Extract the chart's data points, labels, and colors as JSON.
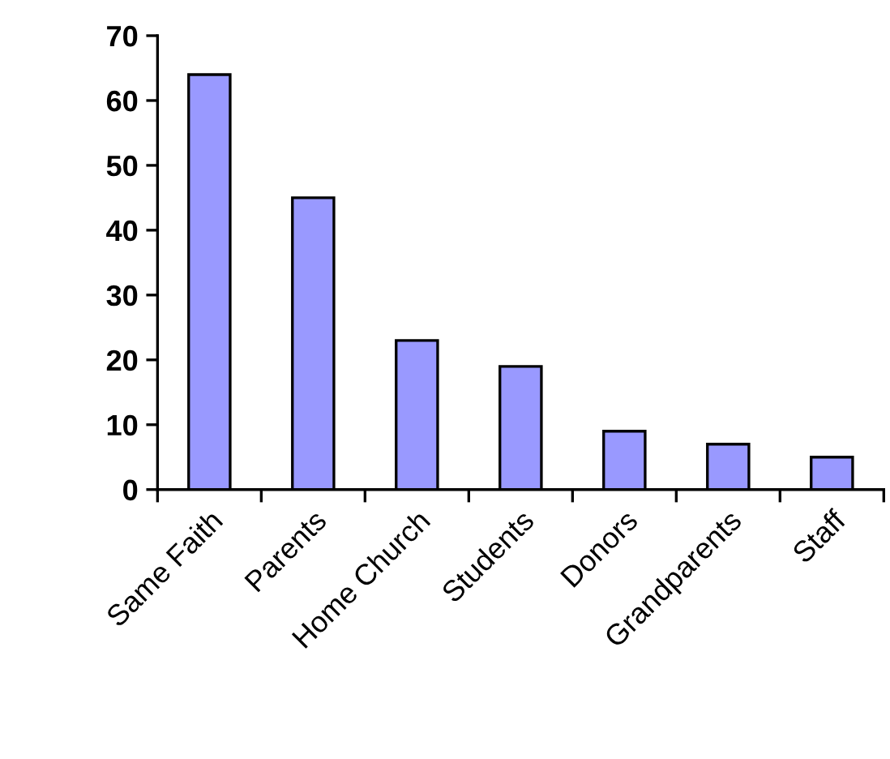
{
  "chart_data": {
    "type": "bar",
    "categories": [
      "Same Faith",
      "Parents",
      "Home Church",
      "Students",
      "Donors",
      "Grandparents",
      "Staff"
    ],
    "values": [
      64,
      45,
      23,
      19,
      9,
      7,
      5
    ],
    "color": "#9999ff",
    "ylim": [
      0,
      70
    ],
    "yticks": [
      0,
      10,
      20,
      30,
      40,
      50,
      60,
      70
    ],
    "grid": false,
    "legend": false
  }
}
